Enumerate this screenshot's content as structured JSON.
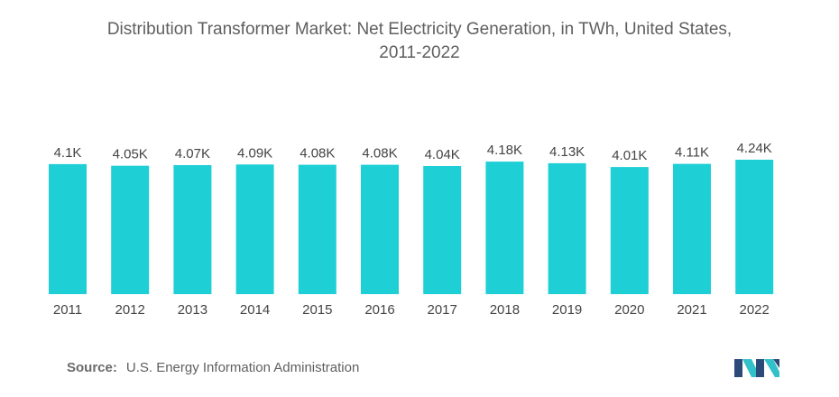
{
  "chart_data": {
    "type": "bar",
    "title_line1": "Distribution Transformer Market: Net Electricity Generation, in TWh, United States,",
    "title_line2": "2011-2022",
    "categories": [
      "2011",
      "2012",
      "2013",
      "2014",
      "2015",
      "2016",
      "2017",
      "2018",
      "2019",
      "2020",
      "2021",
      "2022"
    ],
    "values": [
      4.1,
      4.05,
      4.07,
      4.09,
      4.08,
      4.08,
      4.04,
      4.18,
      4.13,
      4.01,
      4.11,
      4.24
    ],
    "value_labels": [
      "4.1K",
      "4.05K",
      "4.07K",
      "4.09K",
      "4.08K",
      "4.08K",
      "4.04K",
      "4.18K",
      "4.13K",
      "4.01K",
      "4.11K",
      "4.24K"
    ],
    "unit": "K TWh",
    "ylim": [
      0,
      4.24
    ],
    "grid": false,
    "legend": "none",
    "bar_color": "#1ecfd6"
  },
  "footer": {
    "source_label": "Source:",
    "source_text": "U.S. Energy Information Administration"
  },
  "logo": {
    "icon": "mordor-intelligence-logo-icon",
    "colors": [
      "#2b4a78",
      "#33c1c9"
    ]
  }
}
